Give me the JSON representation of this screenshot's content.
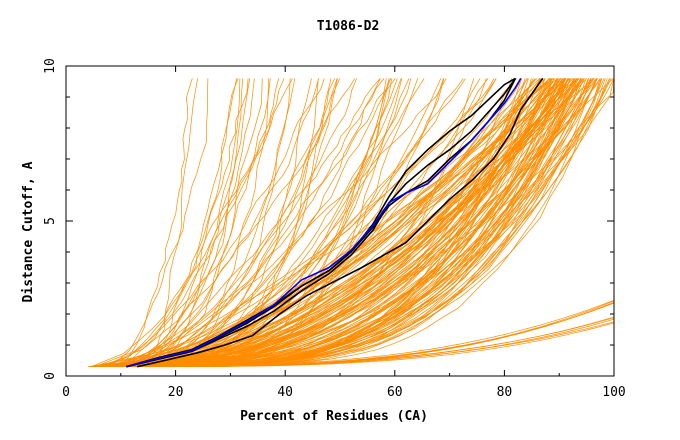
{
  "chart_data": {
    "type": "line",
    "title": "T1086-D2",
    "xlabel": "Percent of Residues (CA)",
    "ylabel": "Distance Cutoff, A",
    "xlim": [
      0,
      100
    ],
    "ylim": [
      0,
      10
    ],
    "x_ticks": [
      "0",
      "20",
      "40",
      "60",
      "80",
      "100"
    ],
    "y_ticks": [
      "0",
      "5",
      "10"
    ],
    "grid": false,
    "legend": "none",
    "colors": {
      "background_models": "#ff8c00",
      "highlight_models": "#000000",
      "best_model": "#0000ff"
    },
    "background_model_count": 180,
    "series": [
      {
        "color": "#000000",
        "points": [
          [
            11,
            0.3
          ],
          [
            17,
            0.55
          ],
          [
            23,
            0.8
          ],
          [
            28,
            1.2
          ],
          [
            33,
            1.6
          ],
          [
            38,
            2.1
          ],
          [
            43,
            2.75
          ],
          [
            48,
            3.3
          ],
          [
            52,
            3.9
          ],
          [
            56,
            4.7
          ],
          [
            59,
            5.6
          ],
          [
            62,
            6.2
          ],
          [
            66,
            6.8
          ],
          [
            70,
            7.3
          ],
          [
            74,
            7.9
          ],
          [
            77,
            8.5
          ],
          [
            80,
            9.1
          ],
          [
            82,
            9.6
          ]
        ]
      },
      {
        "color": "#000000",
        "points": [
          [
            11,
            0.3
          ],
          [
            17,
            0.6
          ],
          [
            23,
            0.85
          ],
          [
            28,
            1.3
          ],
          [
            33,
            1.8
          ],
          [
            38,
            2.3
          ],
          [
            43,
            2.9
          ],
          [
            48,
            3.4
          ],
          [
            52,
            4.0
          ],
          [
            56,
            4.9
          ],
          [
            59,
            5.8
          ],
          [
            62,
            6.6
          ],
          [
            66,
            7.3
          ],
          [
            70,
            7.9
          ],
          [
            74,
            8.4
          ],
          [
            77,
            8.9
          ],
          [
            80,
            9.4
          ],
          [
            82,
            9.6
          ]
        ]
      },
      {
        "color": "#000000",
        "points": [
          [
            13,
            0.3
          ],
          [
            18,
            0.5
          ],
          [
            24,
            0.75
          ],
          [
            29,
            1.0
          ],
          [
            34,
            1.3
          ],
          [
            39,
            2.0
          ],
          [
            44,
            2.6
          ],
          [
            49,
            3.05
          ],
          [
            54,
            3.5
          ],
          [
            58,
            3.9
          ],
          [
            62,
            4.3
          ],
          [
            66,
            5.0
          ],
          [
            70,
            5.7
          ],
          [
            74,
            6.3
          ],
          [
            78,
            7.0
          ],
          [
            81,
            7.8
          ],
          [
            83,
            8.6
          ],
          [
            85,
            9.1
          ],
          [
            87,
            9.6
          ]
        ]
      },
      {
        "color": "#000000",
        "points": [
          [
            11,
            0.3
          ],
          [
            17,
            0.55
          ],
          [
            23,
            0.8
          ],
          [
            28,
            1.25
          ],
          [
            33,
            1.7
          ],
          [
            38,
            2.25
          ],
          [
            43,
            2.9
          ],
          [
            48,
            3.4
          ],
          [
            52,
            4.0
          ],
          [
            56,
            4.8
          ],
          [
            59,
            5.5
          ],
          [
            62,
            5.9
          ],
          [
            66,
            6.3
          ],
          [
            70,
            7.0
          ],
          [
            74,
            7.6
          ],
          [
            77,
            8.2
          ],
          [
            80,
            8.9
          ],
          [
            82,
            9.6
          ]
        ]
      },
      {
        "color": "#0000ff",
        "points": [
          [
            11,
            0.3
          ],
          [
            17,
            0.58
          ],
          [
            23,
            0.82
          ],
          [
            28,
            1.28
          ],
          [
            33,
            1.75
          ],
          [
            38,
            2.3
          ],
          [
            43,
            3.1
          ],
          [
            48,
            3.5
          ],
          [
            52,
            4.05
          ],
          [
            56,
            4.85
          ],
          [
            59,
            5.6
          ],
          [
            62,
            5.9
          ],
          [
            66,
            6.2
          ],
          [
            70,
            6.9
          ],
          [
            74,
            7.6
          ],
          [
            77,
            8.2
          ],
          [
            80,
            8.8
          ],
          [
            82,
            9.3
          ],
          [
            83,
            9.6
          ]
        ]
      }
    ]
  }
}
